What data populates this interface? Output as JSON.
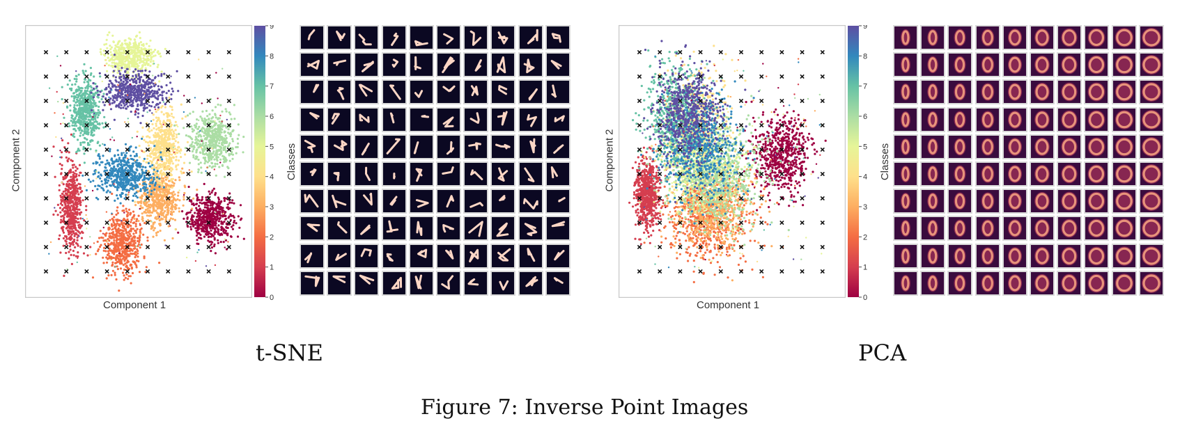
{
  "figure_caption": "Figure 7: Inverse Point Images",
  "panels": [
    {
      "caption": "t-SNE",
      "xlabel": "Component 1",
      "ylabel": "Component 2",
      "colorbar_label": "Classes",
      "colorbar_ticks": [
        "0",
        "1",
        "2",
        "3",
        "4",
        "5",
        "6",
        "7",
        "8",
        "9"
      ],
      "thumb_style": "digit"
    },
    {
      "caption": "PCA",
      "xlabel": "Component 1",
      "ylabel": "Component 2",
      "colorbar_label": "Classes",
      "colorbar_ticks": [
        "0",
        "1",
        "2",
        "3",
        "4",
        "5",
        "6",
        "7",
        "8",
        "9"
      ],
      "thumb_style": "blur"
    }
  ],
  "chart_data": [
    {
      "type": "scatter",
      "title": "",
      "xlabel": "Component 1",
      "ylabel": "Component 2",
      "colormap": "Spectral",
      "color_range": [
        0,
        9
      ],
      "colorbar_label": "Classes",
      "grid": false,
      "legend": "none",
      "clusters": [
        {
          "class": 0,
          "center": [
            0.82,
            0.29
          ],
          "spread": [
            0.1,
            0.085
          ]
        },
        {
          "class": 1,
          "center": [
            0.2,
            0.33
          ],
          "spread": [
            0.05,
            0.17
          ]
        },
        {
          "class": 2,
          "center": [
            0.43,
            0.2
          ],
          "spread": [
            0.09,
            0.11
          ]
        },
        {
          "class": 3,
          "center": [
            0.59,
            0.36
          ],
          "spread": [
            0.09,
            0.1
          ]
        },
        {
          "class": 4,
          "center": [
            0.61,
            0.55
          ],
          "spread": [
            0.08,
            0.13
          ]
        },
        {
          "class": 5,
          "center": [
            0.46,
            0.89
          ],
          "spread": [
            0.11,
            0.06
          ]
        },
        {
          "class": 6,
          "center": [
            0.83,
            0.58
          ],
          "spread": [
            0.1,
            0.1
          ]
        },
        {
          "class": 7,
          "center": [
            0.26,
            0.69
          ],
          "spread": [
            0.07,
            0.12
          ]
        },
        {
          "class": 8,
          "center": [
            0.44,
            0.45
          ],
          "spread": [
            0.13,
            0.08
          ]
        },
        {
          "class": 9,
          "center": [
            0.47,
            0.76
          ],
          "spread": [
            0.14,
            0.07
          ]
        }
      ],
      "marker_grid": {
        "rows": 10,
        "cols": 10,
        "marker": "x"
      },
      "inverse_images": {
        "rows": 10,
        "cols": 10
      }
    },
    {
      "type": "scatter",
      "title": "",
      "xlabel": "Component 1",
      "ylabel": "Component 2",
      "colormap": "Spectral",
      "color_range": [
        0,
        9
      ],
      "colorbar_label": "Classes",
      "grid": false,
      "legend": "none",
      "clusters": [
        {
          "class": 0,
          "center": [
            0.72,
            0.52
          ],
          "spread": [
            0.12,
            0.14
          ]
        },
        {
          "class": 1,
          "center": [
            0.12,
            0.38
          ],
          "spread": [
            0.06,
            0.13
          ]
        },
        {
          "class": 2,
          "center": [
            0.4,
            0.3
          ],
          "spread": [
            0.18,
            0.17
          ]
        },
        {
          "class": 3,
          "center": [
            0.42,
            0.33
          ],
          "spread": [
            0.16,
            0.15
          ]
        },
        {
          "class": 4,
          "center": [
            0.33,
            0.62
          ],
          "spread": [
            0.14,
            0.2
          ]
        },
        {
          "class": 5,
          "center": [
            0.37,
            0.48
          ],
          "spread": [
            0.17,
            0.17
          ]
        },
        {
          "class": 6,
          "center": [
            0.44,
            0.45
          ],
          "spread": [
            0.2,
            0.2
          ]
        },
        {
          "class": 7,
          "center": [
            0.25,
            0.66
          ],
          "spread": [
            0.13,
            0.2
          ]
        },
        {
          "class": 8,
          "center": [
            0.36,
            0.55
          ],
          "spread": [
            0.17,
            0.18
          ]
        },
        {
          "class": 9,
          "center": [
            0.3,
            0.68
          ],
          "spread": [
            0.14,
            0.18
          ]
        }
      ],
      "marker_grid": {
        "rows": 10,
        "cols": 10,
        "marker": "x"
      },
      "inverse_images": {
        "rows": 10,
        "cols": 10
      }
    }
  ],
  "colors": {
    "spectral": [
      "#9e0142",
      "#d53e4f",
      "#f46d43",
      "#fdae61",
      "#fee08b",
      "#e6f598",
      "#abdda4",
      "#66c2a5",
      "#3288bd",
      "#5e4fa2"
    ],
    "thumb_bg_digit": "#0b0822",
    "thumb_fg_digit": "#fcd6c5",
    "thumb_bg_blur": "#3a0b3e",
    "thumb_fg_blur": "#f3a07f",
    "thumb_border": "#d9d9d9"
  }
}
